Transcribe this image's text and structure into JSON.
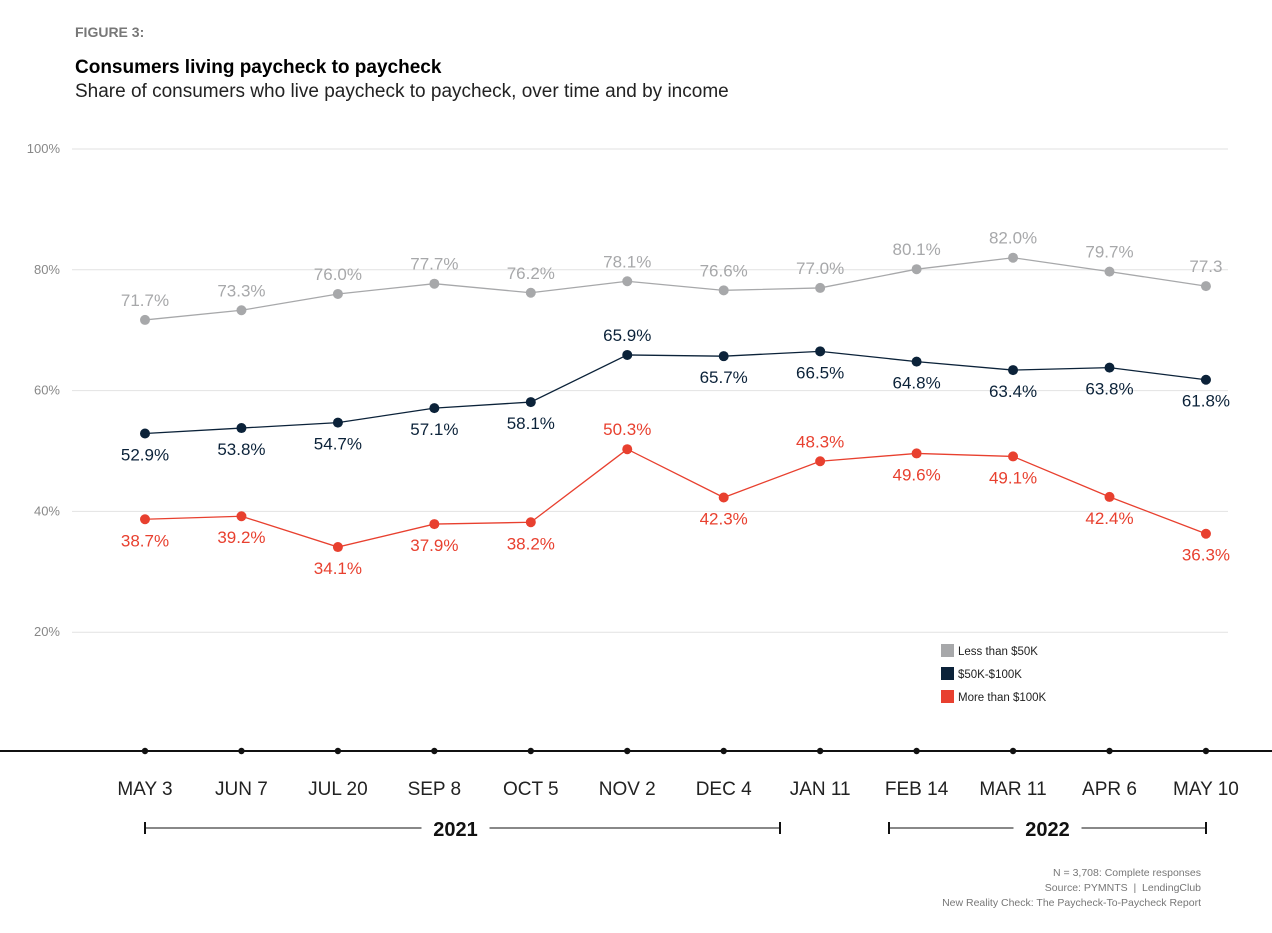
{
  "figure_label": "FIGURE 3:",
  "chart_data": {
    "type": "line",
    "title": "Consumers living paycheck to paycheck",
    "subtitle": "Share of consumers who live paycheck to paycheck, over time and by income",
    "categories": [
      "MAY 3",
      "JUN 7",
      "JUL 20",
      "SEP 8",
      "OCT 5",
      "NOV 2",
      "DEC 4",
      "JAN 11",
      "FEB 14",
      "MAR 11",
      "APR 6",
      "MAY 10"
    ],
    "year_groups": [
      {
        "label": "2021",
        "from": "MAY 3",
        "to": "DEC 4"
      },
      {
        "label": "2022",
        "from": "FEB 14",
        "to": "MAY 10"
      }
    ],
    "ylim": [
      0,
      100
    ],
    "yticks": [
      {
        "value": 20,
        "label": "20%"
      },
      {
        "value": 40,
        "label": "40%"
      },
      {
        "value": 60,
        "label": "60%"
      },
      {
        "value": 80,
        "label": "80%"
      },
      {
        "value": 100,
        "label": "100%"
      }
    ],
    "grid": true,
    "legend_position": "bottom-right",
    "series": [
      {
        "name": "Less than $50K",
        "color": "#a7a8aa",
        "values": [
          71.7,
          73.3,
          76.0,
          77.7,
          76.2,
          78.1,
          76.6,
          77.0,
          80.1,
          82.0,
          79.7,
          77.3
        ],
        "labels": [
          "71.7%",
          "73.3%",
          "76.0%",
          "77.7%",
          "76.2%",
          "78.1%",
          "76.6%",
          "77.0%",
          "80.1%",
          "82.0%",
          "79.7%",
          "77.3"
        ]
      },
      {
        "name": "$50K-$100K",
        "color": "#0b2239",
        "values": [
          52.9,
          53.8,
          54.7,
          57.1,
          58.1,
          65.9,
          65.7,
          66.5,
          64.8,
          63.4,
          63.8,
          61.8
        ],
        "labels": [
          "52.9%",
          "53.8%",
          "54.7%",
          "57.1%",
          "58.1%",
          "65.9%",
          "65.7%",
          "66.5%",
          "64.8%",
          "63.4%",
          "63.8%",
          "61.8%"
        ]
      },
      {
        "name": "More than $100K",
        "color": "#e8402f",
        "values": [
          38.7,
          39.2,
          34.1,
          37.9,
          38.2,
          50.3,
          42.3,
          48.3,
          49.6,
          49.1,
          42.4,
          36.3
        ],
        "labels": [
          "38.7%",
          "39.2%",
          "34.1%",
          "37.9%",
          "38.2%",
          "50.3%",
          "42.3%",
          "48.3%",
          "49.6%",
          "49.1%",
          "42.4%",
          "36.3%"
        ]
      }
    ]
  },
  "notes": [
    "N = 3,708: Complete responses",
    "Source: PYMNTS  |  LendingClub",
    "New Reality Check: The Paycheck-To-Paycheck Report"
  ]
}
